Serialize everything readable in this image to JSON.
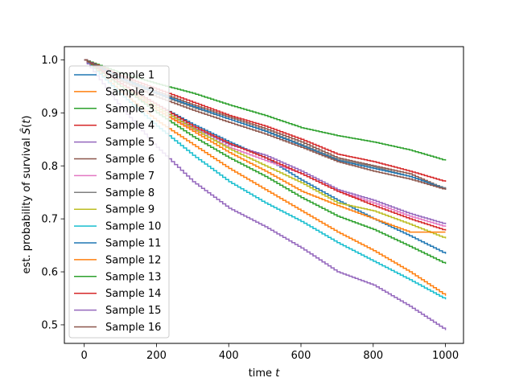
{
  "chart_data": {
    "type": "line",
    "title": "",
    "xlabel": "time t",
    "xlabel_parts": [
      "time ",
      "t"
    ],
    "ylabel": "est. probability of survival Ŝ(t)",
    "ylabel_parts": [
      "est. probability of survival ",
      "Ŝ",
      "(",
      "t",
      ")"
    ],
    "xlim": [
      -55,
      1050
    ],
    "ylim": [
      0.465,
      1.025
    ],
    "x_ticks": [
      0,
      200,
      400,
      600,
      800,
      1000
    ],
    "y_ticks": [
      0.5,
      0.6,
      0.7,
      0.8,
      0.9,
      1.0
    ],
    "x_tick_labels": [
      "0",
      "200",
      "400",
      "600",
      "800",
      "1000"
    ],
    "y_tick_labels": [
      "0.5",
      "0.6",
      "0.7",
      "0.8",
      "0.9",
      "1.0"
    ],
    "legend_position": "upper-left",
    "grid": false,
    "series": [
      {
        "name": "Sample 1",
        "color": "#1f77b4",
        "x": [
          0,
          100,
          200,
          300,
          400,
          500,
          600,
          700,
          800,
          900,
          1000
        ],
        "y": [
          1.0,
          0.955,
          0.915,
          0.878,
          0.845,
          0.815,
          0.773,
          0.735,
          0.7,
          0.668,
          0.634
        ]
      },
      {
        "name": "Sample 2",
        "color": "#ff7f0e",
        "x": [
          0,
          100,
          200,
          300,
          400,
          500,
          600,
          700,
          800,
          900,
          1000
        ],
        "y": [
          1.0,
          0.94,
          0.885,
          0.84,
          0.795,
          0.755,
          0.715,
          0.675,
          0.64,
          0.6,
          0.555
        ]
      },
      {
        "name": "Sample 3",
        "color": "#2ca02c",
        "x": [
          0,
          100,
          200,
          300,
          400,
          500,
          600,
          700,
          800,
          900,
          1000
        ],
        "y": [
          1.0,
          0.975,
          0.955,
          0.937,
          0.915,
          0.895,
          0.872,
          0.857,
          0.845,
          0.83,
          0.81
        ]
      },
      {
        "name": "Sample 4",
        "color": "#d62728",
        "x": [
          0,
          100,
          200,
          300,
          400,
          500,
          600,
          700,
          800,
          900,
          1000
        ],
        "y": [
          1.0,
          0.97,
          0.945,
          0.92,
          0.895,
          0.875,
          0.85,
          0.822,
          0.808,
          0.79,
          0.77
        ]
      },
      {
        "name": "Sample 5",
        "color": "#9467bd",
        "x": [
          0,
          100,
          200,
          300,
          400,
          500,
          600,
          700,
          800,
          900,
          1000
        ],
        "y": [
          1.0,
          0.955,
          0.91,
          0.872,
          0.84,
          0.82,
          0.79,
          0.755,
          0.735,
          0.71,
          0.69
        ]
      },
      {
        "name": "Sample 6",
        "color": "#8c564b",
        "x": [
          0,
          100,
          200,
          300,
          400,
          500,
          600,
          700,
          800,
          900,
          1000
        ],
        "y": [
          1.0,
          0.967,
          0.94,
          0.915,
          0.892,
          0.87,
          0.845,
          0.815,
          0.8,
          0.785,
          0.755
        ]
      },
      {
        "name": "Sample 7",
        "color": "#e377c2",
        "x": [
          0,
          100,
          200,
          300,
          400,
          500,
          600,
          700,
          800,
          900,
          1000
        ],
        "y": [
          1.0,
          0.955,
          0.905,
          0.868,
          0.835,
          0.81,
          0.785,
          0.752,
          0.73,
          0.705,
          0.685
        ]
      },
      {
        "name": "Sample 8",
        "color": "#7f7f7f",
        "x": [
          0,
          100,
          200,
          300,
          400,
          500,
          600,
          700,
          800,
          900,
          1000
        ],
        "y": [
          1.0,
          0.962,
          0.935,
          0.91,
          0.888,
          0.866,
          0.84,
          0.812,
          0.798,
          0.78,
          0.757
        ]
      },
      {
        "name": "Sample 9",
        "color": "#bcbd22",
        "x": [
          0,
          100,
          200,
          300,
          400,
          500,
          600,
          700,
          800,
          900,
          1000
        ],
        "y": [
          1.0,
          0.955,
          0.91,
          0.87,
          0.832,
          0.8,
          0.768,
          0.73,
          0.715,
          0.69,
          0.663
        ]
      },
      {
        "name": "Sample 10",
        "color": "#17becf",
        "x": [
          0,
          100,
          200,
          300,
          400,
          500,
          600,
          700,
          800,
          900,
          1000
        ],
        "y": [
          1.0,
          0.935,
          0.875,
          0.82,
          0.77,
          0.73,
          0.695,
          0.655,
          0.62,
          0.585,
          0.548
        ]
      },
      {
        "name": "Sample 11",
        "color": "#1f77b4",
        "x": [
          0,
          100,
          200,
          300,
          400,
          500,
          600,
          700,
          800,
          900,
          1000
        ],
        "y": [
          1.0,
          0.965,
          0.937,
          0.912,
          0.888,
          0.865,
          0.838,
          0.81,
          0.795,
          0.78,
          0.755
        ]
      },
      {
        "name": "Sample 12",
        "color": "#ff7f0e",
        "x": [
          0,
          100,
          200,
          300,
          400,
          500,
          600,
          700,
          800,
          900,
          1000
        ],
        "y": [
          1.0,
          0.95,
          0.905,
          0.865,
          0.825,
          0.79,
          0.752,
          0.725,
          0.7,
          0.675,
          0.675
        ]
      },
      {
        "name": "Sample 13",
        "color": "#2ca02c",
        "x": [
          0,
          100,
          200,
          300,
          400,
          500,
          600,
          700,
          800,
          900,
          1000
        ],
        "y": [
          1.0,
          0.95,
          0.9,
          0.855,
          0.815,
          0.78,
          0.74,
          0.705,
          0.68,
          0.648,
          0.615
        ]
      },
      {
        "name": "Sample 14",
        "color": "#d62728",
        "x": [
          0,
          100,
          200,
          300,
          400,
          500,
          600,
          700,
          800,
          900,
          1000
        ],
        "y": [
          1.0,
          0.955,
          0.915,
          0.875,
          0.842,
          0.815,
          0.785,
          0.752,
          0.725,
          0.7,
          0.678
        ]
      },
      {
        "name": "Sample 15",
        "color": "#9467bd",
        "x": [
          0,
          100,
          200,
          300,
          400,
          500,
          600,
          700,
          800,
          900,
          1000
        ],
        "y": [
          1.0,
          0.91,
          0.835,
          0.77,
          0.72,
          0.685,
          0.645,
          0.6,
          0.575,
          0.535,
          0.49
        ]
      },
      {
        "name": "Sample 16",
        "color": "#8c564b",
        "x": [
          0,
          100,
          200,
          300,
          400,
          500,
          600,
          700,
          800,
          900,
          1000
        ],
        "y": [
          1.0,
          0.96,
          0.93,
          0.905,
          0.882,
          0.86,
          0.835,
          0.808,
          0.79,
          0.775,
          0.755
        ]
      }
    ]
  }
}
